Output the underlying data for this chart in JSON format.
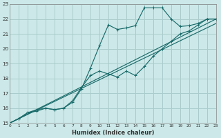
{
  "xlabel": "Humidex (Indice chaleur)",
  "bg_color": "#cce8e8",
  "grid_color": "#aacccc",
  "line_color": "#1a6b6b",
  "xlim": [
    0,
    23
  ],
  "ylim": [
    15,
    23
  ],
  "xticks": [
    0,
    1,
    2,
    3,
    4,
    5,
    6,
    7,
    8,
    9,
    10,
    11,
    12,
    13,
    14,
    15,
    16,
    17,
    18,
    19,
    20,
    21,
    22,
    23
  ],
  "yticks": [
    15,
    16,
    17,
    18,
    19,
    20,
    21,
    22,
    23
  ],
  "line1_x": [
    0,
    1,
    2,
    3,
    4,
    5,
    6,
    7,
    8,
    9,
    10,
    11,
    12,
    13,
    14,
    15,
    16,
    17,
    18,
    19,
    20,
    21,
    22,
    23
  ],
  "line1_y": [
    15.0,
    15.3,
    15.7,
    15.8,
    16.0,
    15.9,
    16.0,
    16.4,
    17.3,
    18.7,
    20.2,
    21.6,
    21.3,
    21.4,
    21.55,
    22.75,
    22.75,
    22.75,
    22.0,
    21.5,
    21.55,
    21.7,
    22.0,
    22.0
  ],
  "line2_x": [
    0,
    1,
    2,
    3,
    4,
    5,
    6,
    7,
    8,
    9,
    10,
    11,
    12,
    13,
    14,
    15,
    16,
    17,
    18,
    19,
    20,
    21,
    22,
    23
  ],
  "line2_y": [
    15.0,
    15.3,
    15.7,
    15.9,
    16.0,
    15.9,
    16.0,
    16.5,
    17.4,
    18.2,
    18.5,
    18.3,
    18.1,
    18.5,
    18.2,
    18.8,
    19.5,
    20.0,
    20.5,
    21.0,
    21.2,
    21.6,
    22.0,
    22.0
  ],
  "line3_x": [
    0,
    23
  ],
  "line3_y": [
    15.0,
    22.0
  ],
  "line4_x": [
    0,
    23
  ],
  "line4_y": [
    15.0,
    22.0
  ]
}
